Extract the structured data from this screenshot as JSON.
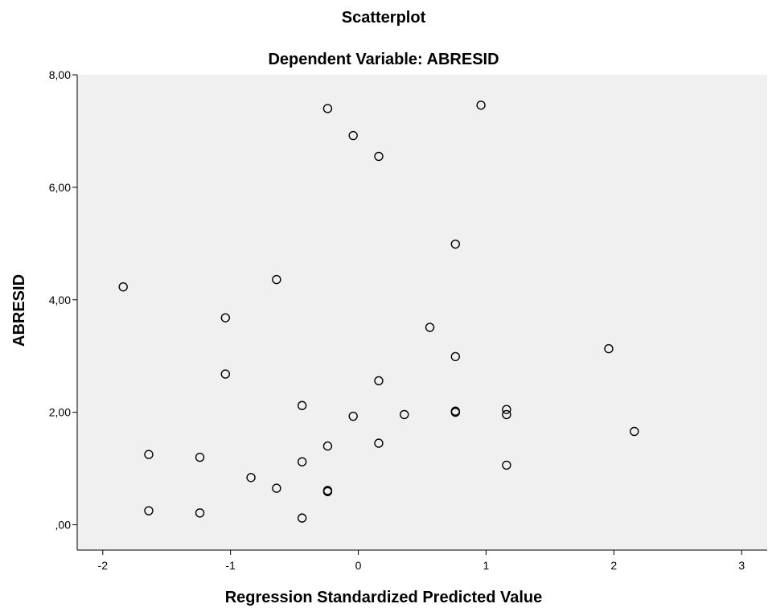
{
  "chart_data": {
    "type": "scatter",
    "title": "Scatterplot",
    "subtitle": "Dependent Variable: ABRESID",
    "xlabel": "Regression Standardized Predicted Value",
    "ylabel": "ABRESID",
    "xlim": [
      -2.2,
      3.2
    ],
    "ylim": [
      -0.45,
      8.0
    ],
    "xticks": [
      -2,
      -1,
      0,
      1,
      2,
      3
    ],
    "xtick_labels": [
      "-2",
      "-1",
      "0",
      "1",
      "2",
      "3"
    ],
    "yticks": [
      0,
      2,
      4,
      6,
      8
    ],
    "ytick_labels": [
      ",00",
      "2,00",
      "4,00",
      "6,00",
      "8,00"
    ],
    "grid": false,
    "marker": "open-circle",
    "plot_background": "#f0f0f0",
    "points": [
      {
        "x": -0.24,
        "y": 7.4
      },
      {
        "x": 0.96,
        "y": 7.46
      },
      {
        "x": -0.04,
        "y": 6.92
      },
      {
        "x": 0.16,
        "y": 6.55
      },
      {
        "x": 0.76,
        "y": 4.99
      },
      {
        "x": -0.64,
        "y": 4.36
      },
      {
        "x": -1.84,
        "y": 4.23
      },
      {
        "x": -1.04,
        "y": 3.68
      },
      {
        "x": 0.56,
        "y": 3.51
      },
      {
        "x": 1.96,
        "y": 3.13
      },
      {
        "x": 0.76,
        "y": 2.99
      },
      {
        "x": -1.04,
        "y": 2.68
      },
      {
        "x": 0.16,
        "y": 2.56
      },
      {
        "x": -0.44,
        "y": 2.12
      },
      {
        "x": 0.76,
        "y": 2.02
      },
      {
        "x": 0.76,
        "y": 2.0
      },
      {
        "x": 1.16,
        "y": 2.05
      },
      {
        "x": 1.16,
        "y": 1.96
      },
      {
        "x": 0.36,
        "y": 1.96
      },
      {
        "x": -0.04,
        "y": 1.93
      },
      {
        "x": 2.16,
        "y": 1.66
      },
      {
        "x": 0.16,
        "y": 1.45
      },
      {
        "x": -0.24,
        "y": 1.4
      },
      {
        "x": -1.64,
        "y": 1.25
      },
      {
        "x": -1.24,
        "y": 1.2
      },
      {
        "x": -0.44,
        "y": 1.12
      },
      {
        "x": 1.16,
        "y": 1.06
      },
      {
        "x": -0.84,
        "y": 0.84
      },
      {
        "x": -0.64,
        "y": 0.65
      },
      {
        "x": -0.24,
        "y": 0.61
      },
      {
        "x": -0.24,
        "y": 0.59
      },
      {
        "x": -1.64,
        "y": 0.25
      },
      {
        "x": -1.24,
        "y": 0.21
      },
      {
        "x": -0.44,
        "y": 0.12
      }
    ]
  }
}
